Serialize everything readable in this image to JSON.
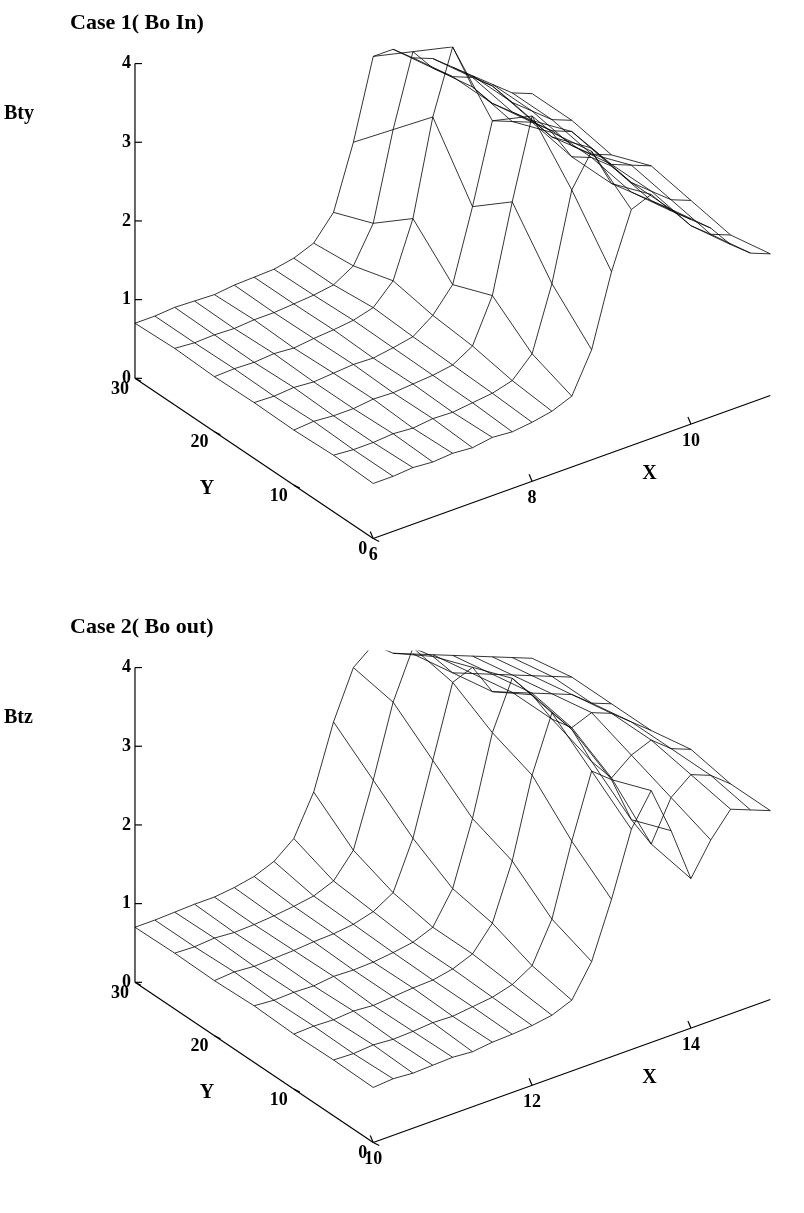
{
  "chart_data": [
    {
      "type": "surface",
      "title": "Case 1( Bo In)",
      "x_label": "X",
      "y_label": "Y",
      "z_label": "Bty",
      "xlim": [
        6,
        11
      ],
      "xticks": [
        6,
        8,
        10
      ],
      "ylim": [
        0,
        30
      ],
      "yticks": [
        0,
        10,
        20,
        30
      ],
      "zlim": [
        0,
        4
      ],
      "zticks": [
        0,
        1,
        2,
        3,
        4
      ],
      "x": [
        6,
        6.25,
        6.5,
        6.75,
        7,
        7.25,
        7.5,
        7.75,
        8,
        8.25,
        8.5,
        8.75,
        9,
        9.25,
        9.5,
        9.75,
        10,
        10.25,
        10.5,
        10.75,
        11
      ],
      "y": [
        0,
        5,
        10,
        15,
        20,
        25,
        30
      ],
      "values": [
        [
          0.7,
          0.7,
          0.72,
          0.7,
          0.72,
          0.7,
          0.74,
          0.72,
          0.75,
          0.8,
          0.9,
          1.4,
          2.3,
          3.0,
          3.1,
          2.8,
          2.6,
          2.4,
          2.1,
          1.9,
          1.8
        ],
        [
          0.72,
          0.7,
          0.7,
          0.72,
          0.7,
          0.73,
          0.72,
          0.75,
          0.78,
          0.85,
          1.1,
          1.9,
          3.0,
          3.4,
          2.9,
          2.7,
          2.5,
          2.3,
          2.0,
          1.8,
          1.7
        ],
        [
          0.7,
          0.72,
          0.7,
          0.7,
          0.73,
          0.72,
          0.74,
          0.76,
          0.8,
          0.95,
          1.5,
          2.6,
          3.6,
          3.3,
          2.9,
          2.8,
          2.6,
          2.3,
          2.1,
          1.9,
          1.8
        ],
        [
          0.71,
          0.7,
          0.72,
          0.7,
          0.72,
          0.74,
          0.73,
          0.77,
          0.82,
          1.0,
          1.3,
          2.2,
          3.2,
          3.1,
          3.0,
          2.8,
          2.7,
          2.4,
          2.1,
          2.0,
          1.9
        ],
        [
          0.7,
          0.71,
          0.7,
          0.72,
          0.7,
          0.73,
          0.75,
          0.78,
          0.85,
          1.1,
          1.8,
          3.0,
          3.8,
          3.2,
          2.9,
          2.7,
          2.5,
          2.2,
          2.0,
          1.8,
          1.7
        ],
        [
          0.72,
          0.7,
          0.71,
          0.7,
          0.72,
          0.72,
          0.74,
          0.76,
          0.8,
          0.95,
          1.4,
          2.5,
          3.4,
          3.1,
          2.9,
          2.8,
          2.6,
          2.3,
          2.1,
          1.9,
          1.8
        ],
        [
          0.7,
          0.7,
          0.72,
          0.71,
          0.7,
          0.73,
          0.74,
          0.75,
          0.8,
          0.9,
          1.2,
          2.0,
          3.0,
          3.0,
          2.8,
          2.7,
          2.5,
          2.3,
          2.1,
          1.9,
          1.8
        ]
      ]
    },
    {
      "type": "surface",
      "title": "Case 2( Bo out)",
      "x_label": "X",
      "y_label": "Y",
      "z_label": "Btz",
      "xlim": [
        10,
        15
      ],
      "xticks": [
        10,
        12,
        14
      ],
      "ylim": [
        0,
        30
      ],
      "yticks": [
        0,
        10,
        20,
        30
      ],
      "zlim": [
        0,
        4
      ],
      "zticks": [
        0,
        1,
        2,
        3,
        4
      ],
      "x": [
        10,
        10.25,
        10.5,
        10.75,
        11,
        11.25,
        11.5,
        11.75,
        12,
        12.25,
        12.5,
        12.75,
        13,
        13.25,
        13.5,
        13.75,
        14,
        14.25,
        14.5,
        14.75,
        15
      ],
      "y": [
        0,
        5,
        10,
        15,
        20,
        25,
        30
      ],
      "values": [
        [
          0.7,
          0.72,
          0.7,
          0.71,
          0.72,
          0.7,
          0.73,
          0.74,
          0.76,
          0.8,
          0.9,
          1.3,
          2.0,
          2.8,
          3.2,
          2.6,
          1.9,
          2.3,
          2.6,
          2.5,
          2.4
        ],
        [
          0.71,
          0.7,
          0.72,
          0.7,
          0.71,
          0.73,
          0.72,
          0.75,
          0.78,
          0.85,
          1.0,
          1.5,
          2.4,
          3.2,
          3.0,
          2.4,
          2.0,
          2.5,
          2.7,
          2.6,
          2.4
        ],
        [
          0.7,
          0.71,
          0.7,
          0.72,
          0.7,
          0.72,
          0.74,
          0.75,
          0.8,
          0.9,
          1.2,
          1.9,
          2.9,
          3.6,
          3.3,
          2.8,
          2.5,
          2.7,
          2.8,
          2.6,
          2.5
        ],
        [
          0.72,
          0.7,
          0.71,
          0.7,
          0.73,
          0.72,
          0.73,
          0.76,
          0.8,
          0.9,
          1.3,
          2.1,
          3.1,
          3.7,
          3.4,
          3.0,
          2.8,
          2.9,
          2.8,
          2.6,
          2.4
        ],
        [
          0.7,
          0.72,
          0.7,
          0.71,
          0.72,
          0.74,
          0.75,
          0.78,
          0.85,
          1.0,
          1.6,
          2.5,
          3.4,
          3.5,
          3.1,
          3.0,
          2.9,
          2.8,
          2.7,
          2.5,
          2.4
        ],
        [
          0.71,
          0.7,
          0.72,
          0.7,
          0.71,
          0.73,
          0.76,
          0.8,
          0.9,
          1.2,
          2.0,
          2.9,
          3.5,
          3.3,
          3.0,
          2.9,
          2.8,
          2.7,
          2.6,
          2.5,
          2.4
        ],
        [
          0.7,
          0.7,
          0.71,
          0.72,
          0.72,
          0.75,
          0.8,
          0.9,
          1.1,
          1.6,
          2.4,
          3.0,
          3.2,
          3.0,
          2.9,
          2.8,
          2.7,
          2.6,
          2.5,
          2.4,
          2.3
        ]
      ]
    }
  ]
}
